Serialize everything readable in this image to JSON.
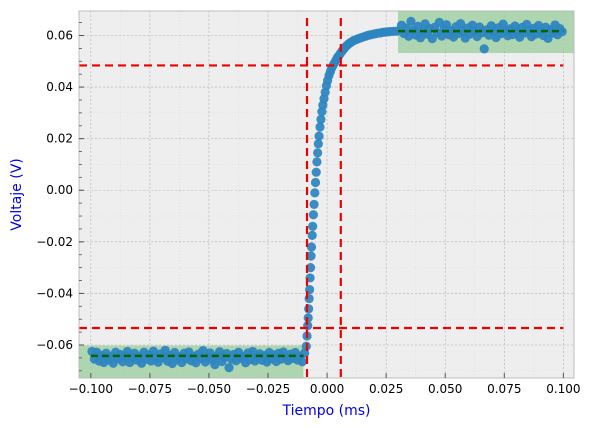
{
  "chart_data": {
    "type": "scatter",
    "title": "",
    "xlabel": "Tiempo (ms)",
    "ylabel": "Voltaje (V)",
    "label_color": "#0000ee",
    "xlim": [
      -0.105,
      0.1045
    ],
    "ylim": [
      -0.0728,
      0.0695
    ],
    "x_ticks": [
      -0.1,
      -0.075,
      -0.05,
      -0.025,
      0.0,
      0.025,
      0.05,
      0.075,
      0.1
    ],
    "x_tick_labels": [
      "−0.100",
      "−0.075",
      "−0.050",
      "−0.025",
      "0.000",
      "0.025",
      "0.050",
      "0.075",
      "0.100"
    ],
    "y_ticks": [
      -0.06,
      -0.04,
      -0.02,
      0.0,
      0.02,
      0.04,
      0.06
    ],
    "y_tick_labels": [
      "−0.06",
      "−0.04",
      "−0.02",
      "0.00",
      "0.02",
      "0.04",
      "0.06"
    ],
    "grid": true,
    "background": "#eeeeee",
    "colors": {
      "points": "#2e86c1",
      "red_lines": "#ee0000",
      "green_lines": "#006400",
      "bands": "#4caf50"
    },
    "series": [
      {
        "values_note": "",
        "points": [
          [
            -0.0995,
            -0.0625
          ],
          [
            -0.0985,
            -0.0655
          ],
          [
            -0.0975,
            -0.0628
          ],
          [
            -0.0965,
            -0.0662
          ],
          [
            -0.0955,
            -0.0641
          ],
          [
            -0.0945,
            -0.0668
          ],
          [
            -0.0935,
            -0.0632
          ],
          [
            -0.0925,
            -0.0658
          ],
          [
            -0.0915,
            -0.0645
          ],
          [
            -0.0905,
            -0.0671
          ],
          [
            -0.0895,
            -0.0628
          ],
          [
            -0.0885,
            -0.0652
          ],
          [
            -0.0875,
            -0.0637
          ],
          [
            -0.0865,
            -0.0665
          ],
          [
            -0.0855,
            -0.0642
          ],
          [
            -0.0845,
            -0.0625
          ],
          [
            -0.0835,
            -0.0668
          ],
          [
            -0.0825,
            -0.0648
          ],
          [
            -0.0815,
            -0.0632
          ],
          [
            -0.0805,
            -0.0659
          ],
          [
            -0.0795,
            -0.0644
          ],
          [
            -0.0785,
            -0.0671
          ],
          [
            -0.0775,
            -0.0628
          ],
          [
            -0.0765,
            -0.0655
          ],
          [
            -0.0755,
            -0.0638
          ],
          [
            -0.0745,
            -0.0662
          ],
          [
            -0.0735,
            -0.0624
          ],
          [
            -0.0725,
            -0.0651
          ],
          [
            -0.0715,
            -0.0667
          ],
          [
            -0.0705,
            -0.0635
          ],
          [
            -0.0695,
            -0.0648
          ],
          [
            -0.0685,
            -0.0621
          ],
          [
            -0.0675,
            -0.0663
          ],
          [
            -0.0665,
            -0.0641
          ],
          [
            -0.0655,
            -0.0672
          ],
          [
            -0.0645,
            -0.0629
          ],
          [
            -0.0635,
            -0.0657
          ],
          [
            -0.0625,
            -0.0645
          ],
          [
            -0.0615,
            -0.0668
          ],
          [
            -0.0605,
            -0.0632
          ],
          [
            -0.0595,
            -0.0654
          ],
          [
            -0.0585,
            -0.0627
          ],
          [
            -0.0575,
            -0.0661
          ],
          [
            -0.0565,
            -0.0643
          ],
          [
            -0.0555,
            -0.0669
          ],
          [
            -0.0545,
            -0.0636
          ],
          [
            -0.0535,
            -0.0652
          ],
          [
            -0.0525,
            -0.0622
          ],
          [
            -0.0515,
            -0.0666
          ],
          [
            -0.0505,
            -0.0647
          ],
          [
            -0.0495,
            -0.0631
          ],
          [
            -0.0485,
            -0.0658
          ],
          [
            -0.0475,
            -0.0676
          ],
          [
            -0.0465,
            -0.0643
          ],
          [
            -0.0455,
            -0.0626
          ],
          [
            -0.0445,
            -0.0664
          ],
          [
            -0.0435,
            -0.0649
          ],
          [
            -0.0425,
            -0.0633
          ],
          [
            -0.0415,
            -0.0688
          ],
          [
            -0.0405,
            -0.0655
          ],
          [
            -0.0395,
            -0.0637
          ],
          [
            -0.0385,
            -0.0661
          ],
          [
            -0.0375,
            -0.0628
          ],
          [
            -0.0365,
            -0.0652
          ],
          [
            -0.0355,
            -0.0644
          ],
          [
            -0.0345,
            -0.0669
          ],
          [
            -0.0335,
            -0.0631
          ],
          [
            -0.0325,
            -0.0657
          ],
          [
            -0.0315,
            -0.0625
          ],
          [
            -0.0305,
            -0.0662
          ],
          [
            -0.0295,
            -0.0646
          ],
          [
            -0.0285,
            -0.0634
          ],
          [
            -0.0275,
            -0.0659
          ],
          [
            -0.0265,
            -0.0641
          ],
          [
            -0.0255,
            -0.0666
          ],
          [
            -0.0245,
            -0.0629
          ],
          [
            -0.0235,
            -0.0653
          ],
          [
            -0.0225,
            -0.0638
          ],
          [
            -0.0215,
            -0.0664
          ],
          [
            -0.0205,
            -0.0632
          ],
          [
            -0.0195,
            -0.0655
          ],
          [
            -0.0185,
            -0.0627
          ],
          [
            -0.0175,
            -0.0648
          ],
          [
            -0.0165,
            -0.0661
          ],
          [
            -0.0155,
            -0.0636
          ],
          [
            -0.0145,
            -0.0652
          ],
          [
            -0.0135,
            -0.0629
          ],
          [
            -0.0125,
            -0.0658
          ],
          [
            -0.0115,
            -0.0643
          ],
          [
            -0.0105,
            -0.0665
          ],
          [
            -0.0095,
            -0.0631
          ],
          [
            -0.0088,
            -0.0605
          ],
          [
            -0.0085,
            -0.0565
          ],
          [
            -0.0082,
            -0.0525
          ],
          [
            -0.008,
            -0.0495
          ],
          [
            -0.0078,
            -0.046
          ],
          [
            -0.0076,
            -0.042
          ],
          [
            -0.0074,
            -0.0385
          ],
          [
            -0.0072,
            -0.034
          ],
          [
            -0.007,
            -0.03
          ],
          [
            -0.0068,
            -0.0255
          ],
          [
            -0.0066,
            -0.022
          ],
          [
            -0.0063,
            -0.0175
          ],
          [
            -0.0061,
            -0.014
          ],
          [
            -0.0058,
            -0.0095
          ],
          [
            -0.0055,
            -0.0055
          ],
          [
            -0.0052,
            -0.001
          ],
          [
            -0.0049,
            0.003
          ],
          [
            -0.0046,
            0.007
          ],
          [
            -0.0043,
            0.011
          ],
          [
            -0.004,
            0.0145
          ],
          [
            -0.0037,
            0.018
          ],
          [
            -0.0034,
            0.021
          ],
          [
            -0.003,
            0.0245
          ],
          [
            -0.0026,
            0.0275
          ],
          [
            -0.0022,
            0.0305
          ],
          [
            -0.0018,
            0.033
          ],
          [
            -0.0013,
            0.0355
          ],
          [
            -0.0008,
            0.038
          ],
          [
            -0.0003,
            0.0405
          ],
          [
            0.0002,
            0.0425
          ],
          [
            0.0008,
            0.0445
          ],
          [
            0.0014,
            0.046
          ],
          [
            0.002,
            0.0475
          ],
          [
            0.0026,
            0.0485
          ],
          [
            0.0032,
            0.0495
          ],
          [
            0.0038,
            0.0505
          ],
          [
            0.0044,
            0.0515
          ],
          [
            0.005,
            0.0522
          ],
          [
            0.0056,
            0.053
          ],
          [
            0.0062,
            0.0538
          ],
          [
            0.0068,
            0.0545
          ],
          [
            0.0074,
            0.0552
          ],
          [
            0.008,
            0.0558
          ],
          [
            0.0086,
            0.0563
          ],
          [
            0.0092,
            0.0568
          ],
          [
            0.0098,
            0.0572
          ],
          [
            0.0105,
            0.0576
          ],
          [
            0.0112,
            0.058
          ],
          [
            0.012,
            0.0583
          ],
          [
            0.0128,
            0.0586
          ],
          [
            0.0136,
            0.0589
          ],
          [
            0.0145,
            0.0592
          ],
          [
            0.0155,
            0.0595
          ],
          [
            0.0165,
            0.0598
          ],
          [
            0.0175,
            0.0601
          ],
          [
            0.0185,
            0.0603
          ],
          [
            0.0195,
            0.0605
          ],
          [
            0.0205,
            0.0607
          ],
          [
            0.0215,
            0.0609
          ],
          [
            0.0225,
            0.061
          ],
          [
            0.0235,
            0.0612
          ],
          [
            0.0245,
            0.0613
          ],
          [
            0.0255,
            0.0614
          ],
          [
            0.0265,
            0.0615
          ],
          [
            0.028,
            0.0616
          ],
          [
            0.0295,
            0.0617
          ],
          [
            0.0315,
            0.064
          ],
          [
            0.0325,
            0.0608
          ],
          [
            0.0335,
            0.0628
          ],
          [
            0.0345,
            0.0597
          ],
          [
            0.0355,
            0.0655
          ],
          [
            0.0365,
            0.0621
          ],
          [
            0.0375,
            0.0602
          ],
          [
            0.0385,
            0.0636
          ],
          [
            0.0395,
            0.0591
          ],
          [
            0.0405,
            0.0615
          ],
          [
            0.0415,
            0.0645
          ],
          [
            0.0425,
            0.0605
          ],
          [
            0.0435,
            0.0627
          ],
          [
            0.0445,
            0.0588
          ],
          [
            0.0455,
            0.0632
          ],
          [
            0.0465,
            0.0611
          ],
          [
            0.0475,
            0.0651
          ],
          [
            0.0485,
            0.0598
          ],
          [
            0.0495,
            0.0624
          ],
          [
            0.0505,
            0.0642
          ],
          [
            0.0515,
            0.0603
          ],
          [
            0.0525,
            0.0619
          ],
          [
            0.0535,
            0.0594
          ],
          [
            0.0545,
            0.0634
          ],
          [
            0.0555,
            0.0608
          ],
          [
            0.0565,
            0.0646
          ],
          [
            0.0575,
            0.0614
          ],
          [
            0.0585,
            0.059
          ],
          [
            0.0595,
            0.0629
          ],
          [
            0.0605,
            0.0606
          ],
          [
            0.0615,
            0.064
          ],
          [
            0.0625,
            0.0618
          ],
          [
            0.0635,
            0.0596
          ],
          [
            0.0645,
            0.0633
          ],
          [
            0.0655,
            0.061
          ],
          [
            0.0665,
            0.0548
          ],
          [
            0.0675,
            0.0622
          ],
          [
            0.0685,
            0.0601
          ],
          [
            0.0695,
            0.0638
          ],
          [
            0.0705,
            0.0613
          ],
          [
            0.0715,
            0.0592
          ],
          [
            0.0725,
            0.063
          ],
          [
            0.0735,
            0.0607
          ],
          [
            0.0745,
            0.0644
          ],
          [
            0.0755,
            0.0616
          ],
          [
            0.0765,
            0.0599
          ],
          [
            0.0775,
            0.0626
          ],
          [
            0.0785,
            0.0604
          ],
          [
            0.0795,
            0.0637
          ],
          [
            0.0805,
            0.0612
          ],
          [
            0.0815,
            0.0593
          ],
          [
            0.0825,
            0.0631
          ],
          [
            0.0835,
            0.0609
          ],
          [
            0.0845,
            0.0643
          ],
          [
            0.0855,
            0.0617
          ],
          [
            0.0865,
            0.0595
          ],
          [
            0.0875,
            0.0628
          ],
          [
            0.0885,
            0.0606
          ],
          [
            0.0895,
            0.0639
          ],
          [
            0.0905,
            0.0614
          ],
          [
            0.0915,
            0.06
          ],
          [
            0.0925,
            0.0632
          ],
          [
            0.0935,
            0.0589
          ],
          [
            0.0945,
            0.0623
          ],
          [
            0.0955,
            0.061
          ],
          [
            0.0965,
            0.0641
          ],
          [
            0.0975,
            0.0603
          ],
          [
            0.0985,
            0.0627
          ],
          [
            0.0995,
            0.0615
          ]
        ]
      }
    ],
    "red_dashed_lines": {
      "vertical_x": [
        -0.0085,
        0.0058
      ],
      "horizontal": [
        {
          "y": 0.0484,
          "x_range": [
            -0.105,
            0.1
          ]
        },
        {
          "y": -0.0534,
          "x_range": [
            -0.105,
            0.1
          ]
        }
      ]
    },
    "green_dashed_lines": [
      {
        "y": -0.0642,
        "x_range": [
          -0.1,
          -0.01
        ]
      },
      {
        "y": 0.0617,
        "x_range": [
          0.03,
          0.1
        ]
      }
    ],
    "shaded_bands": [
      {
        "x_range": [
          -0.105,
          -0.01
        ],
        "y_range": [
          -0.0728,
          -0.0602
        ]
      },
      {
        "x_range": [
          0.03,
          0.1045
        ],
        "y_range": [
          0.0532,
          0.0695
        ]
      }
    ]
  }
}
